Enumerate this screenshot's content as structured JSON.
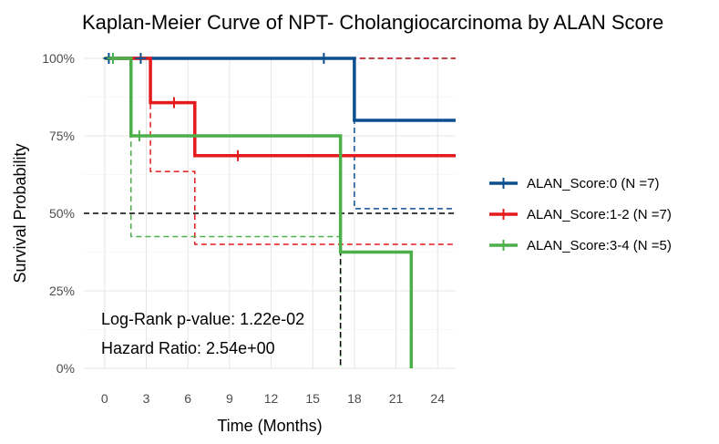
{
  "chart_data": {
    "type": "line",
    "title": "Kaplan-Meier Curve of NPT- Cholangiocarcinoma by ALAN Score",
    "xlabel": "Time (Months)",
    "ylabel": "Survival Probability",
    "xlim": [
      -1.5,
      25.3
    ],
    "ylim": [
      0,
      1
    ],
    "x_ticks": [
      0,
      3,
      6,
      9,
      12,
      15,
      18,
      21,
      24
    ],
    "y_ticks": [
      0,
      0.25,
      0.5,
      0.75,
      1.0
    ],
    "y_tick_labels": [
      "0%",
      "25%",
      "50%",
      "75%",
      "100%"
    ],
    "grid": true,
    "legend_position": "right",
    "series": [
      {
        "name": "ALAN_Score:0 (N =7)",
        "color": "#0b4f8f",
        "steps": [
          [
            0,
            1.0
          ],
          [
            18.0,
            0.8
          ],
          [
            25.3,
            0.8
          ]
        ],
        "censors": [
          [
            0.3,
            1.0
          ],
          [
            2.6,
            1.0
          ],
          [
            15.8,
            1.0
          ]
        ],
        "ci_lower": [
          [
            0,
            1.0
          ],
          [
            18.0,
            0.515
          ],
          [
            25.3,
            0.515
          ]
        ],
        "ci_upper": [
          [
            0,
            1.0
          ],
          [
            25.3,
            1.0
          ]
        ]
      },
      {
        "name": "ALAN_Score:1-2 (N =7)",
        "color": "#e41a1c",
        "steps": [
          [
            0,
            1.0
          ],
          [
            3.3,
            0.857
          ],
          [
            6.5,
            0.686
          ],
          [
            25.3,
            0.686
          ]
        ],
        "censors": [
          [
            5.0,
            0.857
          ],
          [
            9.6,
            0.686
          ]
        ],
        "ci_lower": [
          [
            0,
            1.0
          ],
          [
            3.3,
            0.635
          ],
          [
            6.5,
            0.4
          ],
          [
            25.3,
            0.4
          ]
        ],
        "ci_upper": [
          [
            0,
            1.0
          ],
          [
            25.3,
            1.0
          ]
        ]
      },
      {
        "name": "ALAN_Score:3-4 (N =5)",
        "color": "#4daf4a",
        "steps": [
          [
            0,
            1.0
          ],
          [
            1.9,
            0.75
          ],
          [
            17.0,
            0.375
          ],
          [
            22.1,
            0.0
          ]
        ],
        "censors": [
          [
            0.6,
            1.0
          ],
          [
            2.5,
            0.75
          ]
        ],
        "ci_lower": [
          [
            0,
            1.0
          ],
          [
            1.9,
            0.425
          ],
          [
            17.0,
            0.0
          ]
        ],
        "ci_upper": [
          [
            0,
            1.0
          ],
          [
            17.0,
            1.0
          ]
        ]
      }
    ],
    "median_line": {
      "y": 0.5,
      "x_end": 17.0,
      "color": "#000000"
    },
    "annotations": [
      "Log-Rank p-value: 1.22e-02",
      "Hazard Ratio: 2.54e+00"
    ]
  }
}
